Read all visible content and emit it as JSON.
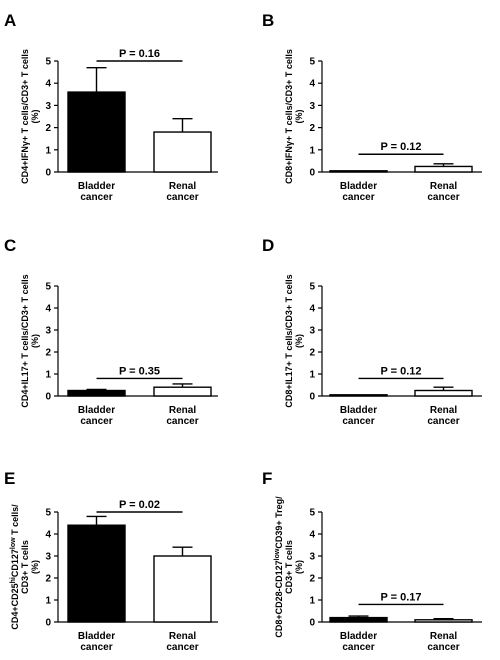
{
  "chart_data": [
    {
      "panel": "A",
      "type": "bar",
      "categories": [
        "Bladder cancer",
        "Renal cancer"
      ],
      "category_lines": [
        [
          "Bladder",
          "cancer"
        ],
        [
          "Renal",
          "cancer"
        ]
      ],
      "values": [
        3.6,
        1.8
      ],
      "errors": [
        1.1,
        0.6
      ],
      "bar_fills": [
        "#000000",
        "#ffffff"
      ],
      "ylabel_lines": [
        "CD4+IFNγ+ T cells/CD3+ T cells",
        "(%)"
      ],
      "yticks": [
        0,
        1,
        2,
        3,
        4,
        5
      ],
      "ylim": [
        0,
        5
      ],
      "p_value": "P = 0.16",
      "p_bracket_y": 5.0
    },
    {
      "panel": "B",
      "type": "bar",
      "categories": [
        "Bladder cancer",
        "Renal cancer"
      ],
      "category_lines": [
        [
          "Bladder",
          "cancer"
        ],
        [
          "Renal",
          "cancer"
        ]
      ],
      "values": [
        0.02,
        0.25
      ],
      "errors": [
        0.01,
        0.12
      ],
      "bar_fills": [
        "#000000",
        "#ffffff"
      ],
      "ylabel_lines": [
        "CD8+IFNγ+ T cells/CD3+ T cells",
        "(%)"
      ],
      "yticks": [
        0,
        1,
        2,
        3,
        4,
        5
      ],
      "ylim": [
        0,
        5
      ],
      "p_value": "P = 0.12",
      "p_bracket_y": 0.8
    },
    {
      "panel": "C",
      "type": "bar",
      "categories": [
        "Bladder cancer",
        "Renal cancer"
      ],
      "category_lines": [
        [
          "Bladder",
          "cancer"
        ],
        [
          "Renal",
          "cancer"
        ]
      ],
      "values": [
        0.25,
        0.4
      ],
      "errors": [
        0.05,
        0.15
      ],
      "bar_fills": [
        "#000000",
        "#ffffff"
      ],
      "ylabel_lines": [
        "CD4+IL17+ T cells/CD3+ T cells",
        "(%)"
      ],
      "yticks": [
        0,
        1,
        2,
        3,
        4,
        5
      ],
      "ylim": [
        0,
        5
      ],
      "p_value": "P = 0.35",
      "p_bracket_y": 0.8
    },
    {
      "panel": "D",
      "type": "bar",
      "categories": [
        "Bladder cancer",
        "Renal cancer"
      ],
      "category_lines": [
        [
          "Bladder",
          "cancer"
        ],
        [
          "Renal",
          "cancer"
        ]
      ],
      "values": [
        0.02,
        0.25
      ],
      "errors": [
        0.01,
        0.15
      ],
      "bar_fills": [
        "#000000",
        "#ffffff"
      ],
      "ylabel_lines": [
        "CD8+IL17+ T cells/CD3+ T cells",
        "(%)"
      ],
      "yticks": [
        0,
        1,
        2,
        3,
        4,
        5
      ],
      "ylim": [
        0,
        5
      ],
      "p_value": "P = 0.12",
      "p_bracket_y": 0.8
    },
    {
      "panel": "E",
      "type": "bar",
      "categories": [
        "Bladder cancer",
        "Renal cancer"
      ],
      "category_lines": [
        [
          "Bladder",
          "cancer"
        ],
        [
          "Renal",
          "cancer"
        ]
      ],
      "values": [
        4.4,
        3.0
      ],
      "errors": [
        0.4,
        0.4
      ],
      "bar_fills": [
        "#000000",
        "#ffffff"
      ],
      "ylabel_lines": [
        "CD4+CD25hiCD127low T cells/",
        "CD3+ T cells",
        "(%)"
      ],
      "yticks": [
        0,
        1,
        2,
        3,
        4,
        5
      ],
      "ylim": [
        0,
        5
      ],
      "p_value": "P = 0.02",
      "p_bracket_y": 5.0
    },
    {
      "panel": "F",
      "type": "bar",
      "categories": [
        "Bladder cancer",
        "Renal cancer"
      ],
      "category_lines": [
        [
          "Bladder",
          "cancer"
        ],
        [
          "Renal",
          "cancer"
        ]
      ],
      "values": [
        0.2,
        0.1
      ],
      "errors": [
        0.07,
        0.05
      ],
      "bar_fills": [
        "#000000",
        "#ffffff"
      ],
      "ylabel_lines": [
        "CD8+CD28-CD127lowCD39+ Treg/",
        "CD3+ T cells",
        "(%)"
      ],
      "yticks": [
        0,
        1,
        2,
        3,
        4,
        5
      ],
      "ylim": [
        0,
        5
      ],
      "p_value": "P = 0.17",
      "p_bracket_y": 0.8
    }
  ]
}
